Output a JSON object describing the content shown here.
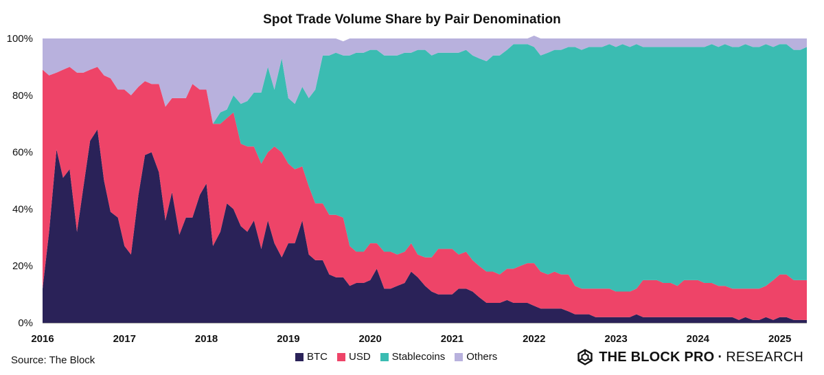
{
  "chart_data": {
    "type": "area",
    "stacked": true,
    "normalized": true,
    "title": "Spot Trade Volume Share by Pair Denomination",
    "ylim": [
      0,
      100
    ],
    "yticks": [
      "0%",
      "20%",
      "40%",
      "60%",
      "80%",
      "100%"
    ],
    "xticks": [
      "2016",
      "2017",
      "2018",
      "2019",
      "2020",
      "2021",
      "2022",
      "2023",
      "2024",
      "2025"
    ],
    "xlim": [
      2016.0,
      2025.33
    ],
    "x": [
      2016.0,
      2016.08,
      2016.17,
      2016.25,
      2016.33,
      2016.42,
      2016.5,
      2016.58,
      2016.67,
      2016.75,
      2016.83,
      2016.92,
      2017.0,
      2017.08,
      2017.17,
      2017.25,
      2017.33,
      2017.42,
      2017.5,
      2017.58,
      2017.67,
      2017.75,
      2017.83,
      2017.92,
      2018.0,
      2018.08,
      2018.17,
      2018.25,
      2018.33,
      2018.42,
      2018.5,
      2018.58,
      2018.67,
      2018.75,
      2018.83,
      2018.92,
      2019.0,
      2019.08,
      2019.17,
      2019.25,
      2019.33,
      2019.42,
      2019.5,
      2019.58,
      2019.67,
      2019.75,
      2019.83,
      2019.92,
      2020.0,
      2020.08,
      2020.17,
      2020.25,
      2020.33,
      2020.42,
      2020.5,
      2020.58,
      2020.67,
      2020.75,
      2020.83,
      2020.92,
      2021.0,
      2021.08,
      2021.17,
      2021.25,
      2021.33,
      2021.42,
      2021.5,
      2021.58,
      2021.67,
      2021.75,
      2021.83,
      2021.92,
      2022.0,
      2022.08,
      2022.17,
      2022.25,
      2022.33,
      2022.42,
      2022.5,
      2022.58,
      2022.67,
      2022.75,
      2022.83,
      2022.92,
      2023.0,
      2023.08,
      2023.17,
      2023.25,
      2023.33,
      2023.42,
      2023.5,
      2023.58,
      2023.67,
      2023.75,
      2023.83,
      2023.92,
      2024.0,
      2024.08,
      2024.17,
      2024.25,
      2024.33,
      2024.42,
      2024.5,
      2024.58,
      2024.67,
      2024.75,
      2024.83,
      2024.92,
      2025.0,
      2025.08,
      2025.17,
      2025.25,
      2025.33
    ],
    "series": [
      {
        "name": "BTC",
        "color": "#2a2258",
        "values": [
          12,
          32,
          61,
          51,
          54,
          32,
          48,
          64,
          68,
          50,
          39,
          37,
          27,
          24,
          45,
          59,
          60,
          53,
          36,
          46,
          31,
          37,
          37,
          45,
          49,
          27,
          32,
          42,
          40,
          34,
          32,
          36,
          26,
          36,
          28,
          23,
          28,
          28,
          36,
          24,
          22,
          22,
          17,
          16,
          16,
          13,
          14,
          14,
          15,
          19,
          12,
          12,
          13,
          14,
          18,
          16,
          13,
          11,
          10,
          10,
          10,
          12,
          12,
          11,
          9,
          7,
          7,
          7,
          8,
          7,
          7,
          7,
          6,
          5,
          5,
          5,
          5,
          4,
          3,
          3,
          3,
          2,
          2,
          2,
          2,
          2,
          2,
          3,
          2,
          2,
          2,
          2,
          2,
          2,
          2,
          2,
          2,
          2,
          2,
          2,
          2,
          2,
          1,
          2,
          1,
          1,
          2,
          1,
          2,
          2,
          1,
          1,
          1
        ]
      },
      {
        "name": "USD",
        "color": "#ee4468",
        "values": [
          77,
          55,
          27,
          38,
          36,
          56,
          40,
          25,
          22,
          37,
          47,
          45,
          55,
          56,
          38,
          26,
          24,
          31,
          40,
          33,
          48,
          42,
          47,
          37,
          33,
          43,
          38,
          30,
          34,
          29,
          30,
          26,
          30,
          24,
          34,
          37,
          28,
          26,
          19,
          24,
          20,
          20,
          21,
          22,
          21,
          14,
          11,
          11,
          13,
          9,
          13,
          13,
          11,
          11,
          10,
          8,
          10,
          12,
          16,
          16,
          16,
          12,
          13,
          11,
          11,
          11,
          11,
          10,
          11,
          12,
          13,
          14,
          15,
          13,
          12,
          13,
          12,
          13,
          10,
          9,
          9,
          10,
          10,
          10,
          9,
          9,
          9,
          9,
          13,
          13,
          13,
          12,
          12,
          11,
          13,
          13,
          13,
          12,
          12,
          11,
          11,
          10,
          11,
          10,
          11,
          11,
          11,
          14,
          15,
          15,
          14,
          14,
          14
        ]
      },
      {
        "name": "Stablecoins",
        "color": "#3bbcb2",
        "values": [
          0,
          0,
          0,
          0,
          0,
          0,
          0,
          0,
          0,
          0,
          0,
          0,
          0,
          0,
          0,
          0,
          0,
          0,
          0,
          0,
          0,
          0,
          0,
          0,
          0,
          0,
          4,
          3,
          6,
          14,
          16,
          19,
          25,
          30,
          20,
          33,
          23,
          23,
          28,
          31,
          40,
          52,
          56,
          57,
          57,
          67,
          70,
          70,
          68,
          68,
          69,
          69,
          70,
          70,
          67,
          72,
          73,
          71,
          69,
          69,
          69,
          71,
          71,
          72,
          73,
          74,
          76,
          77,
          77,
          79,
          78,
          77,
          76,
          76,
          78,
          78,
          79,
          80,
          84,
          84,
          85,
          85,
          85,
          86,
          86,
          87,
          86,
          86,
          82,
          82,
          82,
          83,
          83,
          84,
          82,
          82,
          82,
          83,
          84,
          84,
          85,
          85,
          85,
          86,
          85,
          85,
          85,
          82,
          81,
          81,
          81,
          81,
          82
        ]
      },
      {
        "name": "Others",
        "color": "#b8b1dd",
        "values": [
          11,
          13,
          12,
          11,
          10,
          12,
          12,
          11,
          10,
          13,
          14,
          18,
          18,
          20,
          17,
          15,
          16,
          16,
          24,
          21,
          21,
          21,
          16,
          18,
          18,
          30,
          26,
          25,
          20,
          23,
          22,
          19,
          19,
          10,
          18,
          7,
          21,
          23,
          17,
          21,
          18,
          6,
          6,
          5,
          5,
          6,
          5,
          5,
          4,
          4,
          6,
          6,
          6,
          5,
          5,
          4,
          4,
          6,
          5,
          5,
          5,
          5,
          4,
          6,
          7,
          8,
          6,
          6,
          4,
          2,
          2,
          2,
          4,
          6,
          5,
          4,
          4,
          3,
          3,
          4,
          3,
          3,
          3,
          2,
          3,
          2,
          3,
          2,
          3,
          3,
          3,
          3,
          3,
          3,
          3,
          3,
          3,
          3,
          2,
          3,
          2,
          3,
          3,
          2,
          3,
          3,
          2,
          3,
          2,
          2,
          4,
          4,
          3
        ]
      }
    ],
    "legend_position": "bottom-center",
    "grid": false
  },
  "source_text": "Source: The Block",
  "brand": {
    "part1": "THE BLOCK PRO",
    "separator": "·",
    "part2": "RESEARCH"
  }
}
